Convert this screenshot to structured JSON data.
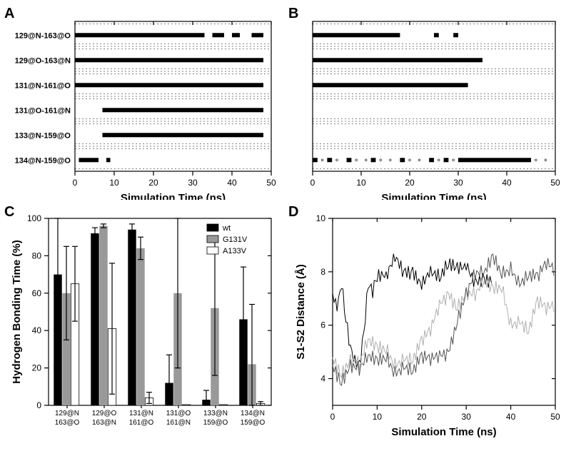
{
  "panelA": {
    "label": "A",
    "type": "raster",
    "x_axis_title": "Simulation Time (ns)",
    "xlim": [
      0,
      50
    ],
    "xticks": [
      0,
      10,
      20,
      30,
      40,
      50
    ],
    "rows": [
      "129@N-163@O",
      "129@O-163@N",
      "131@N-161@O",
      "131@O-161@N",
      "133@N-159@O",
      "134@N-159@O"
    ],
    "segments": {
      "129@N-163@O": [
        [
          0,
          33
        ],
        [
          35,
          38
        ],
        [
          40,
          42
        ],
        [
          45,
          48
        ]
      ],
      "129@O-163@N": [
        [
          0,
          48
        ]
      ],
      "131@N-161@O": [
        [
          0,
          48
        ]
      ],
      "131@O-161@N": [
        [
          7,
          48
        ]
      ],
      "133@N-159@O": [
        [
          7,
          48
        ]
      ],
      "134@N-159@O": [
        [
          1,
          6
        ],
        [
          8,
          9
        ]
      ]
    },
    "background_color": "#ffffff",
    "mark_color": "#000000"
  },
  "panelB": {
    "label": "B",
    "type": "raster",
    "x_axis_title": "Simulation Time (ns)",
    "xlim": [
      0,
      50
    ],
    "xticks": [
      0,
      10,
      20,
      30,
      40,
      50
    ],
    "rows": [
      "129@N-163@O",
      "129@O-163@N",
      "131@N-161@O",
      "131@O-161@N",
      "133@N-159@O",
      "134@N-159@O"
    ],
    "segments": {
      "129@N-163@O": [
        [
          0,
          18
        ],
        [
          25,
          26
        ],
        [
          29,
          30
        ]
      ],
      "129@O-163@N": [
        [
          0,
          35
        ]
      ],
      "131@N-161@O": [
        [
          0,
          32
        ]
      ],
      "131@O-161@N": [],
      "133@N-159@O": [],
      "134@N-159@O": [
        [
          0,
          1
        ],
        [
          3,
          4
        ],
        [
          7,
          8
        ],
        [
          12,
          13
        ],
        [
          18,
          19
        ],
        [
          24,
          25
        ],
        [
          27,
          28
        ],
        [
          30,
          45
        ]
      ]
    },
    "sparse_marks": {
      "134@N-159@O": [
        2,
        5,
        9,
        11,
        14,
        16,
        20,
        22,
        26,
        29,
        33,
        36,
        38,
        40,
        42,
        44,
        46,
        48
      ]
    },
    "background_color": "#ffffff",
    "mark_color": "#000000"
  },
  "panelC": {
    "label": "C",
    "type": "bar",
    "y_axis_title": "Hydrogen Bonding Time (%)",
    "ylim": [
      0,
      100
    ],
    "yticks": [
      0,
      20,
      40,
      60,
      80,
      100
    ],
    "categories": [
      {
        "line1": "129@N",
        "line2": "163@O"
      },
      {
        "line1": "129@O",
        "line2": "163@N"
      },
      {
        "line1": "131@N",
        "line2": "161@O"
      },
      {
        "line1": "131@O",
        "line2": "161@N"
      },
      {
        "line1": "133@N",
        "line2": "159@O"
      },
      {
        "line1": "134@N",
        "line2": "159@O"
      }
    ],
    "series": [
      {
        "name": "wt",
        "color": "#000000",
        "values": [
          70,
          92,
          94,
          12,
          3,
          46
        ],
        "errors": [
          30,
          3,
          3,
          15,
          5,
          28
        ]
      },
      {
        "name": "G131V",
        "color": "#999999",
        "values": [
          60,
          96,
          84,
          60,
          52,
          22
        ],
        "errors": [
          25,
          1,
          6,
          40,
          36,
          32
        ]
      },
      {
        "name": "A133V",
        "color": "#ffffff",
        "values": [
          65,
          41,
          4,
          0,
          0,
          1
        ],
        "errors": [
          20,
          35,
          3,
          0,
          0,
          1
        ]
      }
    ],
    "legend": [
      "wt",
      "G131V",
      "A133V"
    ]
  },
  "panelD": {
    "label": "D",
    "type": "line",
    "x_axis_title": "Simulation Time (ns)",
    "y_axis_title": "S1-S2 Distance (Å)",
    "xlim": [
      0,
      50
    ],
    "ylim": [
      3,
      10
    ],
    "xticks": [
      0,
      10,
      20,
      30,
      40,
      50
    ],
    "yticks": [
      4,
      6,
      8,
      10
    ],
    "traces": [
      {
        "color": "#000000",
        "width": 1.2,
        "points": [
          [
            0,
            7.2
          ],
          [
            1,
            6.8
          ],
          [
            2,
            7.8
          ],
          [
            3,
            6.5
          ],
          [
            4,
            5.5
          ],
          [
            5,
            5.0
          ],
          [
            6,
            4.8
          ],
          [
            7,
            6.0
          ],
          [
            8,
            7.8
          ],
          [
            9,
            7.5
          ],
          [
            10,
            8.0
          ],
          [
            12,
            7.6
          ],
          [
            14,
            8.2
          ],
          [
            16,
            7.8
          ],
          [
            18,
            8.1
          ],
          [
            20,
            7.9
          ],
          [
            22,
            8.3
          ],
          [
            24,
            7.7
          ],
          [
            26,
            8.0
          ],
          [
            28,
            7.8
          ],
          [
            30,
            8.2
          ],
          [
            32,
            7.9
          ],
          [
            34,
            8.1
          ],
          [
            36,
            7.7
          ]
        ]
      },
      {
        "color": "#b0b0b0",
        "width": 1.2,
        "points": [
          [
            0,
            4.8
          ],
          [
            2,
            4.5
          ],
          [
            4,
            5.0
          ],
          [
            6,
            4.6
          ],
          [
            8,
            5.2
          ],
          [
            10,
            4.8
          ],
          [
            12,
            5.0
          ],
          [
            14,
            4.7
          ],
          [
            16,
            5.1
          ],
          [
            18,
            4.9
          ],
          [
            20,
            5.3
          ],
          [
            22,
            5.5
          ],
          [
            24,
            6.5
          ],
          [
            26,
            7.2
          ],
          [
            28,
            7.0
          ],
          [
            30,
            7.5
          ],
          [
            32,
            7.2
          ],
          [
            34,
            7.4
          ],
          [
            36,
            7.0
          ],
          [
            38,
            7.3
          ],
          [
            40,
            6.2
          ],
          [
            42,
            6.5
          ],
          [
            44,
            6.0
          ],
          [
            46,
            6.8
          ],
          [
            48,
            6.3
          ],
          [
            50,
            6.5
          ]
        ]
      },
      {
        "color": "#555555",
        "width": 1.2,
        "points": [
          [
            0,
            4.5
          ],
          [
            2,
            4.2
          ],
          [
            4,
            4.8
          ],
          [
            6,
            4.4
          ],
          [
            8,
            4.6
          ],
          [
            10,
            4.3
          ],
          [
            12,
            4.7
          ],
          [
            14,
            4.4
          ],
          [
            16,
            4.8
          ],
          [
            18,
            4.5
          ],
          [
            20,
            4.7
          ],
          [
            22,
            4.4
          ],
          [
            24,
            4.6
          ],
          [
            26,
            5.0
          ],
          [
            28,
            6.5
          ],
          [
            30,
            7.5
          ],
          [
            32,
            8.0
          ],
          [
            34,
            7.7
          ],
          [
            36,
            8.2
          ],
          [
            38,
            7.8
          ],
          [
            40,
            8.3
          ],
          [
            42,
            7.9
          ],
          [
            44,
            8.1
          ],
          [
            46,
            7.7
          ],
          [
            48,
            8.0
          ],
          [
            50,
            7.8
          ]
        ]
      }
    ]
  }
}
